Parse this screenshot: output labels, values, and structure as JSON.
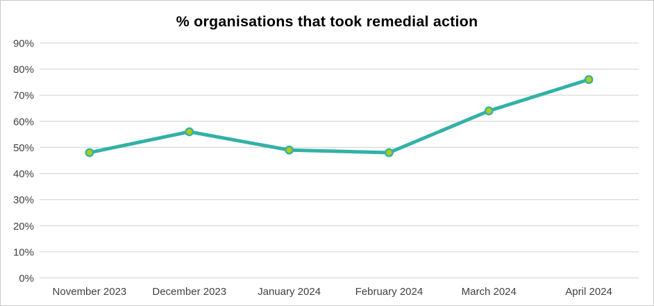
{
  "chart_data": {
    "type": "line",
    "title": "% organisations that took remedial action",
    "categories": [
      "November 2023",
      "December 2023",
      "January 2024",
      "February 2024",
      "March 2024",
      "April 2024"
    ],
    "values": [
      48,
      56,
      49,
      48,
      64,
      76
    ],
    "xlabel": "",
    "ylabel": "",
    "ylim": [
      0,
      90
    ],
    "ytick_step": 10,
    "ytick_labels": [
      "0%",
      "10%",
      "20%",
      "30%",
      "40%",
      "50%",
      "60%",
      "70%",
      "80%",
      "90%"
    ],
    "grid": true,
    "legend": "none",
    "colors": {
      "line": "#33b1a6",
      "marker_fill": "#b3ca10",
      "marker_stroke": "#33b1a6",
      "gridline": "#d9d9d9",
      "axis_text": "#404040",
      "title_text": "#000000",
      "frame_border": "#c9c7c8",
      "background": "#ffffff"
    }
  }
}
